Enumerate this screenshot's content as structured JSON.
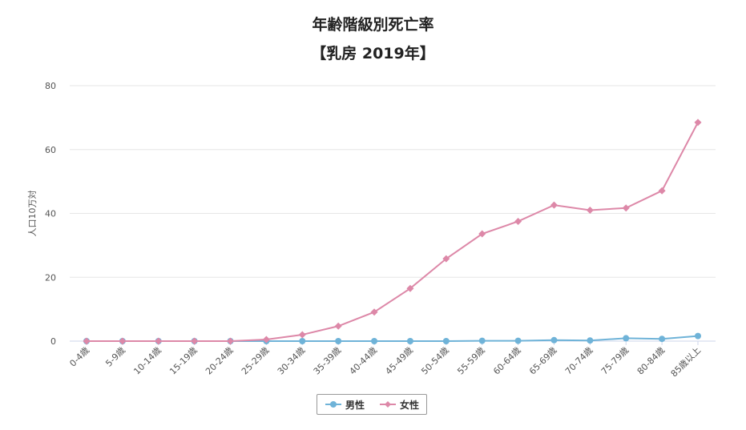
{
  "chart_data": {
    "type": "line",
    "title": "年齢階級別死亡率",
    "subtitle": "【乳房 2019年】",
    "ylabel": "人口10万対",
    "xlabel": "",
    "ylim": [
      0,
      80
    ],
    "yticks": [
      0,
      20,
      40,
      60,
      80
    ],
    "grid": true,
    "legend_position": "bottom",
    "categories": [
      "0-4歳",
      "5-9歳",
      "10-14歳",
      "15-19歳",
      "20-24歳",
      "25-29歳",
      "30-34歳",
      "35-39歳",
      "40-44歳",
      "45-49歳",
      "50-54歳",
      "55-59歳",
      "60-64歳",
      "65-69歳",
      "70-74歳",
      "75-79歳",
      "80-84歳",
      "85歳以上"
    ],
    "series": [
      {
        "name": "男性",
        "color": "#6fb3d8",
        "marker": "circle",
        "values": [
          0,
          0,
          0,
          0,
          0,
          0,
          0,
          0,
          0,
          0,
          0,
          0.1,
          0.1,
          0.3,
          0.2,
          0.9,
          0.7,
          1.6
        ]
      },
      {
        "name": "女性",
        "color": "#dd88a8",
        "marker": "diamond",
        "values": [
          0,
          0,
          0,
          0,
          0,
          0.5,
          2.0,
          4.7,
          9.1,
          16.5,
          25.8,
          33.6,
          37.5,
          42.6,
          41.0,
          41.7,
          47.1,
          68.5
        ]
      }
    ]
  }
}
